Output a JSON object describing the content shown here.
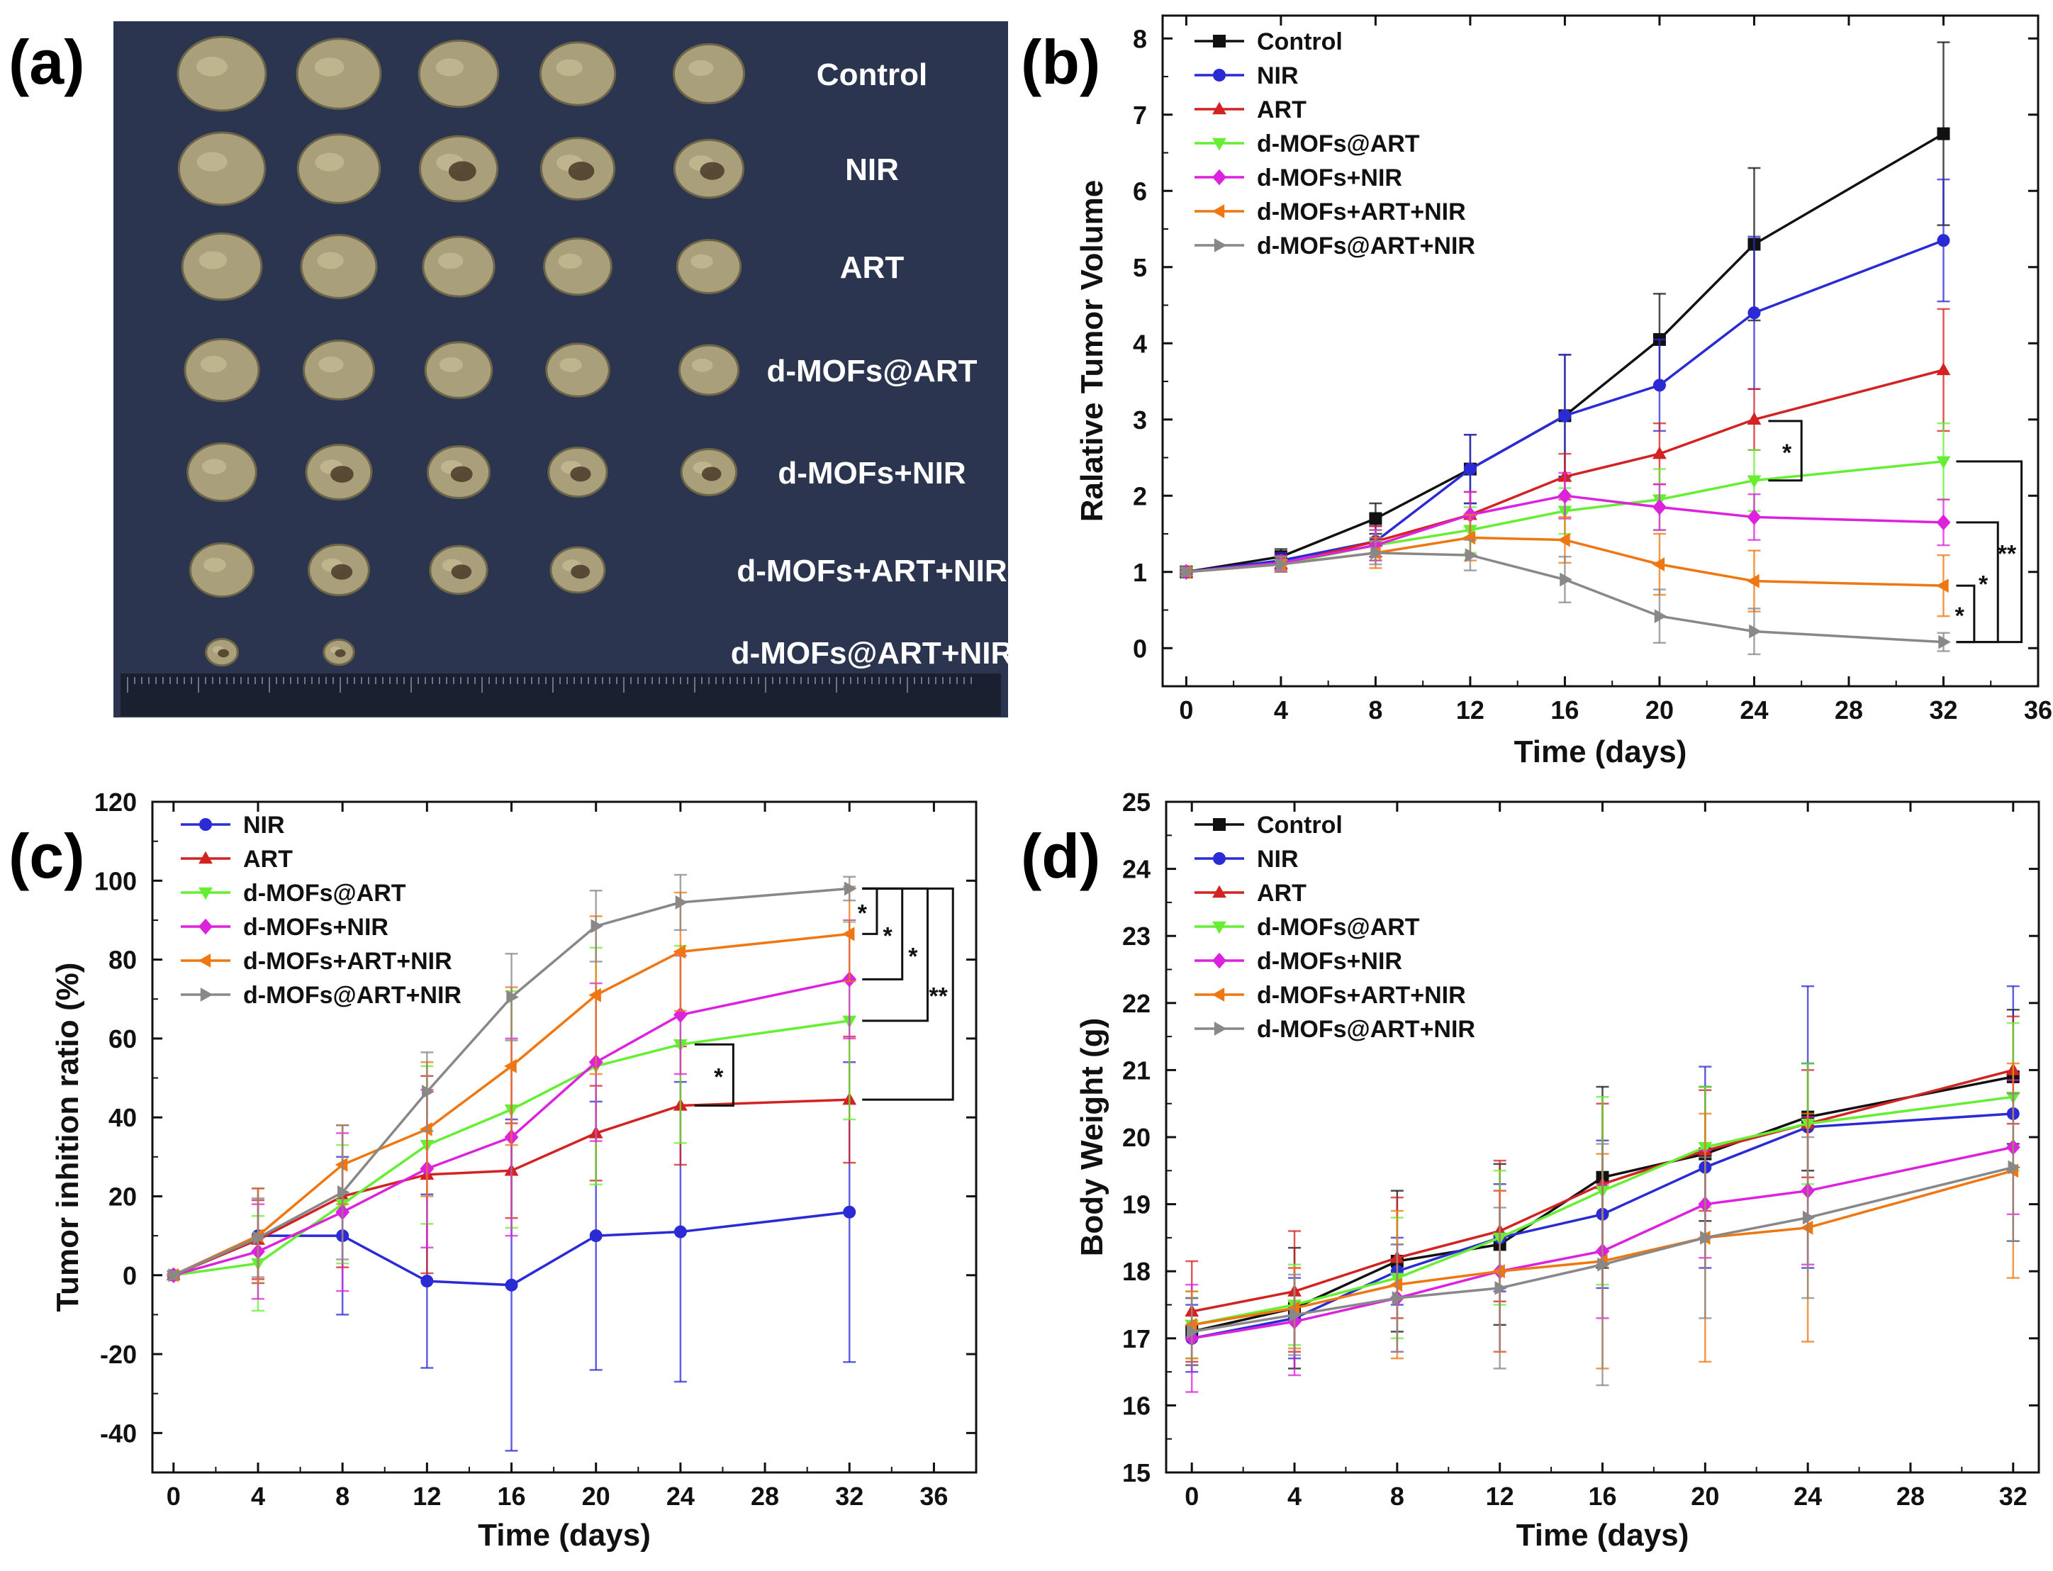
{
  "panel_a": {
    "letter": "(a)",
    "rows": [
      {
        "label": "Control",
        "count": 5
      },
      {
        "label": "NIR",
        "count": 5
      },
      {
        "label": "ART",
        "count": 5
      },
      {
        "label": "d-MOFs@ART",
        "count": 5
      },
      {
        "label": "d-MOFs+NIR",
        "count": 5
      },
      {
        "label": "d-MOFs+ART+NIR",
        "count": 4
      },
      {
        "label": "d-MOFs@ART+NIR",
        "count": 2
      }
    ],
    "colors": {
      "background": "#2c3550",
      "tumor": "#a99f7a",
      "tumor_dark": "#4a3a28"
    }
  },
  "chart_data": [
    {
      "id": "b",
      "letter": "(b)",
      "type": "line",
      "xlabel": "Time (days)",
      "ylabel": "Ralative Tumor Volume",
      "xlim": [
        -1,
        36
      ],
      "ylim": [
        -0.5,
        8.3
      ],
      "xticks": [
        0,
        4,
        8,
        12,
        16,
        20,
        24,
        28,
        32,
        36
      ],
      "yticks": [
        0,
        1,
        2,
        3,
        4,
        5,
        6,
        7,
        8
      ],
      "x": [
        0,
        4,
        8,
        12,
        16,
        20,
        24,
        32
      ],
      "series": [
        {
          "name": "Control",
          "color": "#111111",
          "marker": "square",
          "values": [
            1.0,
            1.2,
            1.7,
            2.35,
            3.05,
            4.05,
            5.3,
            6.75
          ],
          "err": [
            0.05,
            0.1,
            0.2,
            0.45,
            0.8,
            0.6,
            1.0,
            1.2
          ]
        },
        {
          "name": "NIR",
          "color": "#2b2bd6",
          "marker": "circle",
          "values": [
            1.0,
            1.15,
            1.4,
            2.35,
            3.05,
            3.45,
            4.4,
            5.35
          ],
          "err": [
            0.05,
            0.1,
            0.2,
            0.45,
            0.8,
            0.6,
            1.0,
            0.8
          ]
        },
        {
          "name": "ART",
          "color": "#d22222",
          "marker": "triangle-up",
          "values": [
            1.0,
            1.1,
            1.4,
            1.75,
            2.25,
            2.55,
            3.0,
            3.65
          ],
          "err": [
            0.05,
            0.1,
            0.2,
            0.3,
            0.3,
            0.4,
            0.4,
            0.8
          ]
        },
        {
          "name": "d-MOFs@ART",
          "color": "#66ee33",
          "marker": "triangle-down",
          "values": [
            1.0,
            1.1,
            1.35,
            1.55,
            1.8,
            1.95,
            2.2,
            2.45
          ],
          "err": [
            0.05,
            0.1,
            0.2,
            0.3,
            0.3,
            0.4,
            0.4,
            0.5
          ]
        },
        {
          "name": "d-MOFs+NIR",
          "color": "#dd22dd",
          "marker": "diamond",
          "values": [
            1.0,
            1.12,
            1.35,
            1.75,
            2.0,
            1.85,
            1.72,
            1.65
          ],
          "err": [
            0.05,
            0.1,
            0.2,
            0.3,
            0.3,
            0.3,
            0.3,
            0.3
          ]
        },
        {
          "name": "d-MOFs+ART+NIR",
          "color": "#ee7711",
          "marker": "triangle-left",
          "values": [
            1.0,
            1.1,
            1.25,
            1.45,
            1.42,
            1.1,
            0.88,
            0.82
          ],
          "err": [
            0.05,
            0.1,
            0.2,
            0.3,
            0.3,
            0.4,
            0.4,
            0.4
          ]
        },
        {
          "name": "d-MOFs@ART+NIR",
          "color": "#888888",
          "marker": "triangle-right",
          "values": [
            1.0,
            1.1,
            1.25,
            1.22,
            0.9,
            0.42,
            0.22,
            0.08
          ],
          "err": [
            0.05,
            0.1,
            0.15,
            0.2,
            0.3,
            0.35,
            0.3,
            0.12
          ]
        }
      ],
      "legend_position": "top-left",
      "significance": [
        {
          "label": "*",
          "values": [
            2.98,
            2.2
          ],
          "at": 26
        },
        {
          "label": "**",
          "values": [
            2.45,
            0.08
          ],
          "at": 35.3
        },
        {
          "label": "*",
          "values": [
            1.65,
            0.08
          ],
          "at": 34.3
        },
        {
          "label": "*",
          "values": [
            0.82,
            0.08
          ],
          "at": 33.3
        }
      ]
    },
    {
      "id": "c",
      "letter": "(c)",
      "type": "line",
      "xlabel": "Time (days)",
      "ylabel": "Tumor inhition ratio (%)",
      "xlim": [
        -1,
        38
      ],
      "ylim": [
        -50,
        120
      ],
      "xticks": [
        0,
        4,
        8,
        12,
        16,
        20,
        24,
        28,
        32,
        36
      ],
      "yticks": [
        -40,
        -20,
        0,
        20,
        40,
        60,
        80,
        100,
        120
      ],
      "x": [
        0,
        4,
        8,
        12,
        16,
        20,
        24,
        32
      ],
      "series": [
        {
          "name": "NIR",
          "color": "#2b2bd6",
          "marker": "circle",
          "values": [
            0,
            10,
            10,
            -1.5,
            -2.5,
            10,
            11,
            16
          ],
          "err": [
            1,
            12,
            20,
            22,
            42,
            34,
            38,
            38
          ]
        },
        {
          "name": "ART",
          "color": "#d22222",
          "marker": "triangle-up",
          "values": [
            0,
            9,
            20,
            25.5,
            26.5,
            36,
            43,
            44.5
          ],
          "err": [
            1,
            10,
            18,
            25,
            12,
            12,
            15,
            16
          ]
        },
        {
          "name": "d-MOFs@ART",
          "color": "#66ee33",
          "marker": "triangle-down",
          "values": [
            0,
            3,
            18,
            33,
            42,
            53,
            58.5,
            64.5
          ],
          "err": [
            1,
            12,
            15,
            20,
            30,
            30,
            25,
            25
          ]
        },
        {
          "name": "d-MOFs+NIR",
          "color": "#dd22dd",
          "marker": "diamond",
          "values": [
            0,
            6,
            16,
            27,
            35,
            54,
            66,
            75
          ],
          "err": [
            1,
            12,
            20,
            20,
            25,
            20,
            15,
            15
          ]
        },
        {
          "name": "d-MOFs+ART+NIR",
          "color": "#ee7711",
          "marker": "triangle-left",
          "values": [
            0,
            10,
            28,
            37,
            53,
            71,
            82,
            86.5
          ],
          "err": [
            1,
            12,
            10,
            17,
            20,
            20,
            15,
            12
          ]
        },
        {
          "name": "d-MOFs@ART+NIR",
          "color": "#888888",
          "marker": "triangle-right",
          "values": [
            0,
            9.5,
            21,
            46.5,
            70.5,
            88.5,
            94.5,
            98
          ],
          "err": [
            1,
            10,
            17,
            10,
            11,
            9,
            7,
            3
          ]
        }
      ],
      "legend_position": "top-left",
      "significance": [
        {
          "label": "*",
          "values": [
            58.5,
            43
          ],
          "at": 26.5
        },
        {
          "label": "*",
          "values": [
            98,
            86.5
          ],
          "at": 33.3
        },
        {
          "label": "*",
          "values": [
            98,
            75
          ],
          "at": 34.5
        },
        {
          "label": "*",
          "values": [
            98,
            64.5
          ],
          "at": 35.7
        },
        {
          "label": "**",
          "values": [
            98,
            44.5
          ],
          "at": 36.9
        }
      ]
    },
    {
      "id": "d",
      "letter": "(d)",
      "type": "line",
      "xlabel": "Time (days)",
      "ylabel": "Body Weight (g)",
      "xlim": [
        -1,
        33
      ],
      "ylim": [
        15,
        25
      ],
      "xticks": [
        0,
        4,
        8,
        12,
        16,
        20,
        24,
        28,
        32
      ],
      "yticks": [
        15,
        16,
        17,
        18,
        19,
        20,
        21,
        22,
        23,
        24,
        25
      ],
      "x": [
        0,
        4,
        8,
        12,
        16,
        20,
        24,
        32
      ],
      "series": [
        {
          "name": "Control",
          "color": "#111111",
          "marker": "square",
          "values": [
            17.1,
            17.45,
            18.15,
            18.4,
            19.4,
            19.75,
            20.3,
            20.9
          ],
          "err": [
            0.5,
            0.9,
            1.05,
            1.2,
            1.35,
            1.0,
            0.8,
            1.0
          ]
        },
        {
          "name": "NIR",
          "color": "#2b2bd6",
          "marker": "circle",
          "values": [
            17.0,
            17.3,
            18.0,
            18.5,
            18.85,
            19.55,
            20.15,
            20.35
          ],
          "err": [
            0.5,
            0.6,
            0.5,
            0.8,
            1.1,
            1.5,
            2.1,
            1.9
          ]
        },
        {
          "name": "ART",
          "color": "#d22222",
          "marker": "triangle-up",
          "values": [
            17.4,
            17.7,
            18.2,
            18.6,
            19.3,
            19.8,
            20.2,
            21.0
          ],
          "err": [
            0.75,
            0.9,
            0.9,
            1.05,
            1.2,
            0.9,
            0.8,
            0.8
          ]
        },
        {
          "name": "d-MOFs@ART",
          "color": "#66ee33",
          "marker": "triangle-down",
          "values": [
            17.2,
            17.5,
            17.9,
            18.5,
            19.2,
            19.85,
            20.2,
            20.6
          ],
          "err": [
            0.5,
            0.6,
            0.9,
            1.0,
            1.4,
            0.9,
            0.9,
            1.1
          ]
        },
        {
          "name": "d-MOFs+NIR",
          "color": "#dd22dd",
          "marker": "diamond",
          "values": [
            17.0,
            17.25,
            17.6,
            18.0,
            18.3,
            19.0,
            19.2,
            19.85
          ],
          "err": [
            0.8,
            0.8,
            0.8,
            1.2,
            1.0,
            0.8,
            1.1,
            1.0
          ]
        },
        {
          "name": "d-MOFs+ART+NIR",
          "color": "#ee7711",
          "marker": "triangle-left",
          "values": [
            17.2,
            17.45,
            17.8,
            18.0,
            18.15,
            18.5,
            18.65,
            19.5
          ],
          "err": [
            0.5,
            0.6,
            1.1,
            1.2,
            1.6,
            1.85,
            1.7,
            1.6
          ]
        },
        {
          "name": "d-MOFs@ART+NIR",
          "color": "#888888",
          "marker": "triangle-right",
          "values": [
            17.1,
            17.35,
            17.6,
            17.75,
            18.1,
            18.5,
            18.8,
            19.55
          ],
          "err": [
            0.5,
            0.6,
            0.8,
            1.2,
            1.8,
            1.2,
            1.2,
            1.1
          ]
        }
      ],
      "legend_position": "top-left",
      "significance": []
    }
  ]
}
